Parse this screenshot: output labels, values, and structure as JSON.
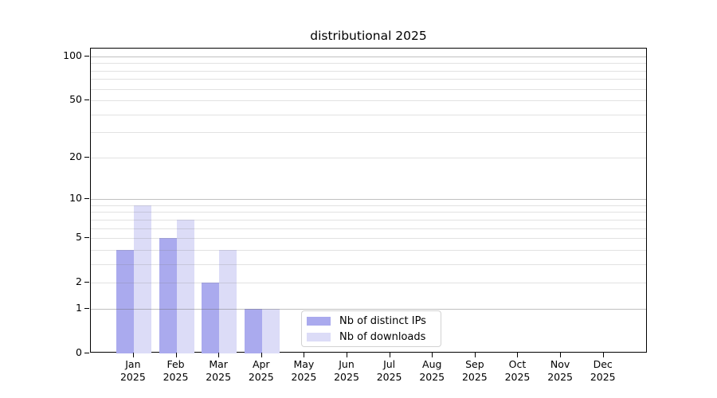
{
  "chart_data": {
    "type": "bar",
    "title": "distributional 2025",
    "categories": [
      "Jan",
      "Feb",
      "Mar",
      "Apr",
      "May",
      "Jun",
      "Jul",
      "Aug",
      "Sep",
      "Oct",
      "Nov",
      "Dec"
    ],
    "year": "2025",
    "series": [
      {
        "name": "Nb of distinct IPs",
        "color": "#aaaaee",
        "values": [
          4,
          5,
          2,
          1,
          0,
          0,
          0,
          0,
          0,
          0,
          0,
          0
        ]
      },
      {
        "name": "Nb of downloads",
        "color": "#dcdcf7",
        "values": [
          9,
          7,
          4,
          1,
          0,
          0,
          0,
          0,
          0,
          0,
          0,
          0
        ]
      }
    ],
    "y_scale": "log1p",
    "ylim": [
      0,
      113.3
    ],
    "y_ticks": [
      0,
      1,
      2,
      5,
      10,
      20,
      50,
      100
    ],
    "grid": {
      "major": [
        1,
        10,
        100
      ],
      "minor": [
        2,
        3,
        4,
        5,
        6,
        7,
        8,
        9,
        20,
        30,
        40,
        50,
        60,
        70,
        80,
        90
      ]
    },
    "legend_position": "lower-center",
    "colors": {
      "axis": "#000000",
      "bar_distinct_ips": "#aaaaee",
      "bar_downloads": "#dcdcf7",
      "grid_major": "#c6c6c6",
      "grid_minor": "#e3e3e3"
    }
  }
}
